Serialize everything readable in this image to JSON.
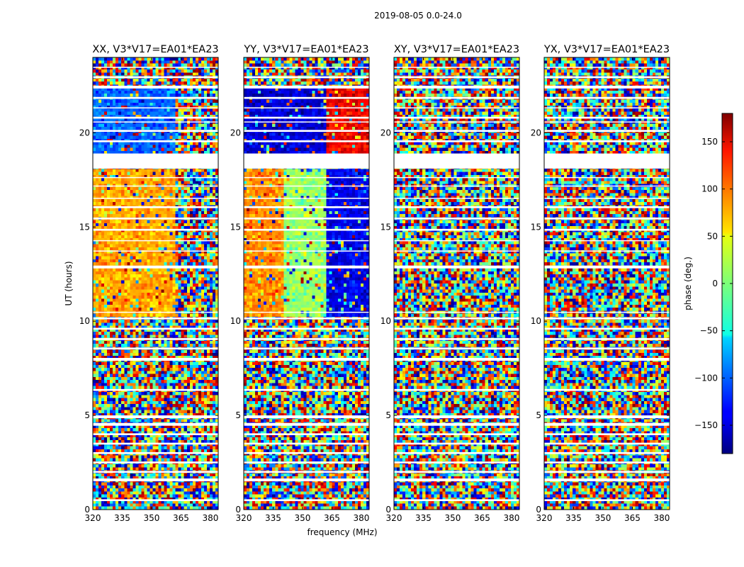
{
  "figure": {
    "suptitle": "2019-08-05 0.0-24.0",
    "xlabel": "frequency (MHz)",
    "ylabel": "UT (hours)"
  },
  "chart_data": {
    "type": "heatmap",
    "title": "2019-08-05 0.0-24.0",
    "xlabel": "frequency (MHz)",
    "ylabel": "UT (hours)",
    "xlim": [
      320,
      384
    ],
    "ylim": [
      0,
      24
    ],
    "xticks": [
      320,
      335,
      350,
      365,
      380
    ],
    "yticks": [
      0,
      5,
      10,
      15,
      20
    ],
    "colormap": "jet",
    "colorbar": {
      "label": "phase (deg.)",
      "range": [
        -180,
        180
      ],
      "ticks": [
        -150,
        -100,
        -50,
        0,
        50,
        100,
        150
      ],
      "tick_labels": [
        "−150",
        "−100",
        "−50",
        "0",
        "50",
        "100",
        "150"
      ]
    },
    "panels": [
      {
        "id": "xx",
        "title": "XX, V3*V17=EA01*EA23"
      },
      {
        "id": "yy",
        "title": "YY, V3*V17=EA01*EA23"
      },
      {
        "id": "xy",
        "title": "XY, V3*V17=EA01*EA23"
      },
      {
        "id": "yx",
        "title": "YX, V3*V17=EA01*EA23"
      }
    ],
    "flagged_gaps_ut_hours": [
      [
        0.45,
        0.55
      ],
      [
        1.5,
        1.65
      ],
      [
        1.95,
        2.05
      ],
      [
        2.45,
        2.55
      ],
      [
        2.95,
        3.05
      ],
      [
        3.45,
        3.55
      ],
      [
        3.95,
        4.05
      ],
      [
        4.45,
        4.6
      ],
      [
        4.85,
        5.0
      ],
      [
        6.3,
        6.4
      ],
      [
        7.9,
        8.05
      ],
      [
        8.5,
        8.6
      ],
      [
        9.0,
        9.1
      ],
      [
        9.55,
        9.65
      ],
      [
        10.1,
        10.2
      ],
      [
        10.45,
        10.5
      ],
      [
        12.8,
        12.95
      ],
      [
        13.7,
        13.75
      ],
      [
        14.25,
        14.3
      ],
      [
        14.8,
        14.9
      ],
      [
        15.4,
        15.5
      ],
      [
        16.0,
        16.1
      ],
      [
        16.5,
        16.55
      ],
      [
        17.15,
        17.2
      ],
      [
        17.6,
        17.65
      ],
      [
        18.1,
        18.9
      ],
      [
        19.5,
        19.6
      ],
      [
        20.05,
        20.15
      ],
      [
        20.55,
        20.6
      ],
      [
        20.75,
        20.85
      ],
      [
        21.3,
        21.35
      ],
      [
        21.8,
        21.9
      ],
      [
        22.35,
        22.5
      ],
      [
        22.9,
        23.0
      ],
      [
        23.45,
        23.5
      ]
    ],
    "regions": [
      {
        "panel": "xx",
        "ut": [
          10.3,
          18.1
        ],
        "freq": [
          320,
          362
        ],
        "phase_deg": 75
      },
      {
        "panel": "xx",
        "ut": [
          18.9,
          22.4
        ],
        "freq": [
          320,
          362
        ],
        "phase_deg": -100
      },
      {
        "panel": "yy",
        "ut": [
          10.3,
          18.1
        ],
        "freq": [
          320,
          341
        ],
        "phase_deg": 85
      },
      {
        "panel": "yy",
        "ut": [
          10.3,
          18.1
        ],
        "freq": [
          341,
          362
        ],
        "phase_deg": 10
      },
      {
        "panel": "yy",
        "ut": [
          10.3,
          18.1
        ],
        "freq": [
          362,
          384
        ],
        "phase_deg": -140
      },
      {
        "panel": "yy",
        "ut": [
          18.9,
          22.4
        ],
        "freq": [
          320,
          362
        ],
        "phase_deg": -150
      },
      {
        "panel": "yy",
        "ut": [
          18.9,
          22.4
        ],
        "freq": [
          362,
          384
        ],
        "phase_deg": 140
      }
    ]
  }
}
